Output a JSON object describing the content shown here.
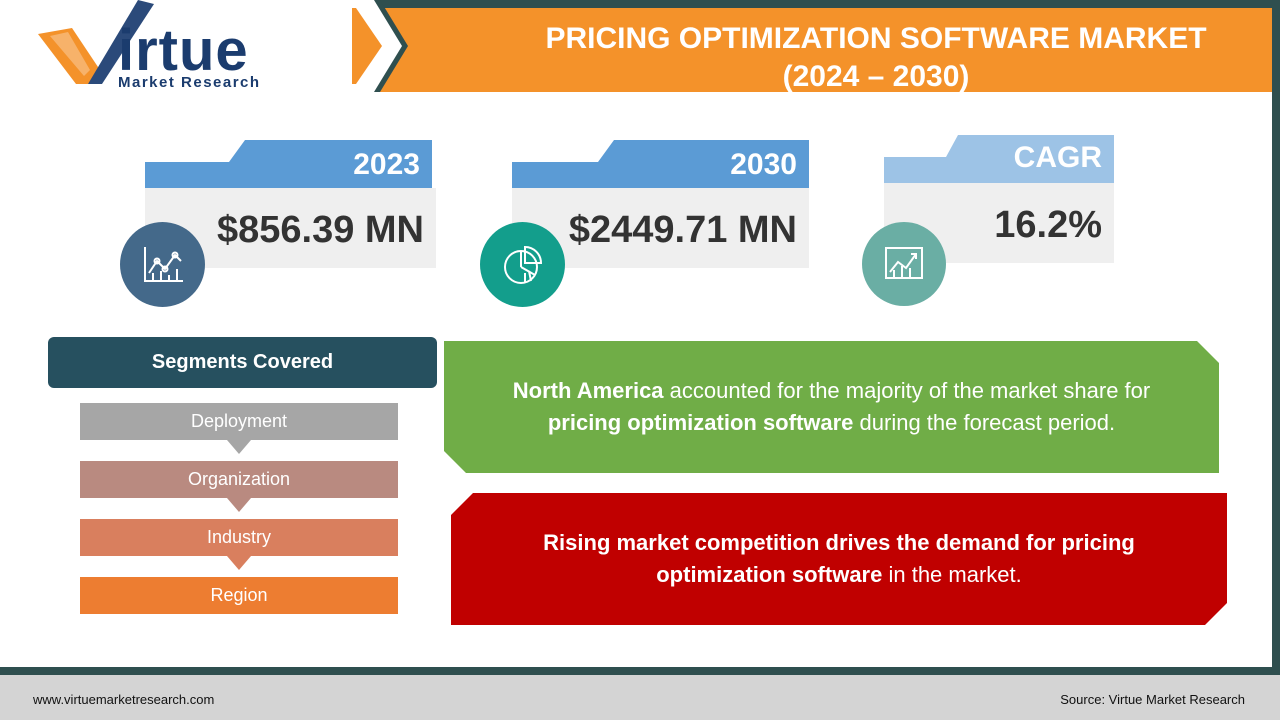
{
  "header": {
    "title_line1": "PRICING OPTIMIZATION SOFTWARE MARKET",
    "title_line2": "(2024 – 2030)"
  },
  "logo": {
    "word": "irtue",
    "subtitle": "Market Research"
  },
  "stats": [
    {
      "label": "2023",
      "value": "$856.39 MN",
      "icon": "line-chart-icon",
      "tab_color": "#5b9bd5",
      "circle_color": "#44698a"
    },
    {
      "label": "2030",
      "value": "$2449.71 MN",
      "icon": "pie-chart-icon",
      "tab_color": "#5b9bd5",
      "circle_color": "#139e8c"
    },
    {
      "label": "CAGR",
      "value": "16.2%",
      "icon": "growth-chart-icon",
      "tab_color": "#9dc3e6",
      "circle_color": "#6aaea4"
    }
  ],
  "segments": {
    "heading": "Segments Covered",
    "items": [
      {
        "label": "Deployment",
        "color": "#a6a6a6"
      },
      {
        "label": "Organization",
        "color": "#b98a80"
      },
      {
        "label": "Industry",
        "color": "#d97f5e"
      },
      {
        "label": "Region",
        "color": "#ed7d31"
      }
    ]
  },
  "insights": {
    "regional": {
      "bold1": "North America",
      "text1": " accounted for the majority of the market share for ",
      "bold2": "pricing optimization software",
      "text2": " during the forecast period.",
      "color": "#70ad47"
    },
    "driver": {
      "bold1": "Rising market competition drives the demand for pricing optimization software",
      "text1": " in the market.",
      "color": "#c00000"
    }
  },
  "footer": {
    "website": "www.virtuemarketresearch.com",
    "source": "Source: Virtue Market Research"
  }
}
